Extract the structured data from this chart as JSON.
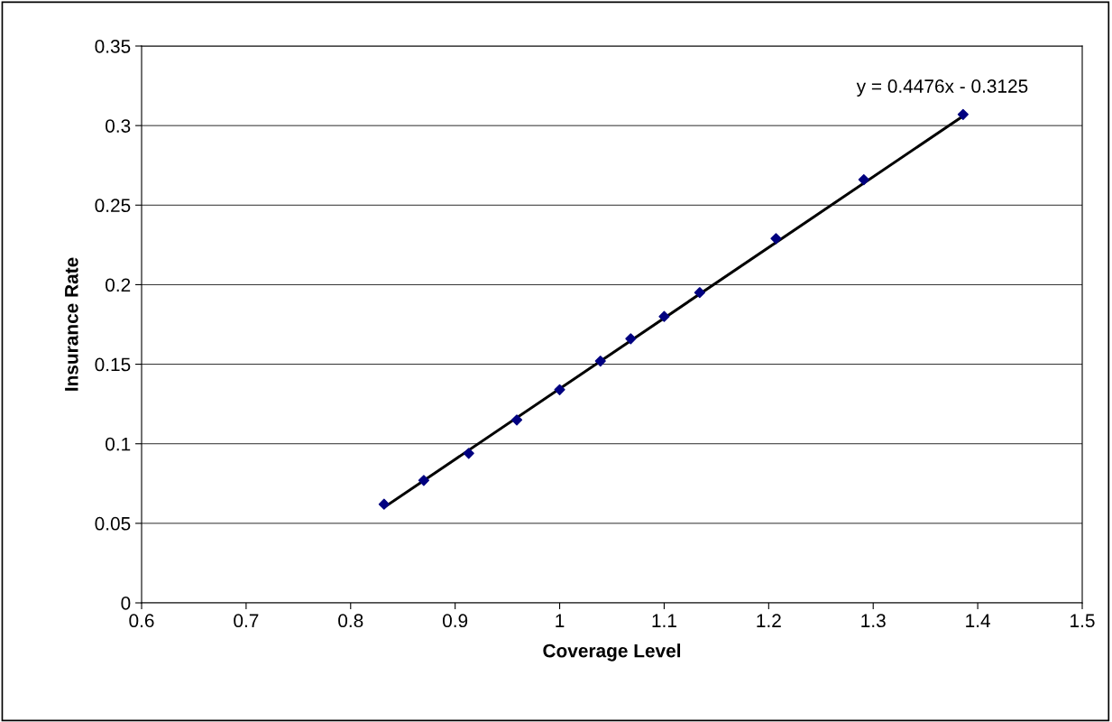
{
  "chart_data": {
    "type": "scatter",
    "xlabel": "Coverage Level",
    "ylabel": "Insurance Rate",
    "series": [
      {
        "color": "#000080",
        "marker": "diamond",
        "x": [
          0.832,
          0.87,
          0.913,
          0.959,
          1.0,
          1.039,
          1.068,
          1.1,
          1.134,
          1.207,
          1.291,
          1.386
        ],
        "values": [
          0.062,
          0.077,
          0.094,
          0.115,
          0.134,
          0.152,
          0.166,
          0.18,
          0.195,
          0.229,
          0.266,
          0.307
        ]
      },
      {
        "type": "line",
        "color": "#000000",
        "marker": "none",
        "x": [
          0.832,
          1.386
        ],
        "values": [
          0.06,
          0.306
        ]
      }
    ],
    "annotations": [
      "y = 0.4476x - 0.3125"
    ],
    "xlim": [
      0.6,
      1.5
    ],
    "xticks": [
      0.6,
      0.7,
      0.8,
      0.9,
      1,
      1.1,
      1.2,
      1.3,
      1.4,
      1.5
    ],
    "ylim": [
      0,
      0.35
    ],
    "yticks": [
      0,
      0.05,
      0.1,
      0.15,
      0.2,
      0.25,
      0.3,
      0.35
    ],
    "grid": "y",
    "legend": false
  }
}
